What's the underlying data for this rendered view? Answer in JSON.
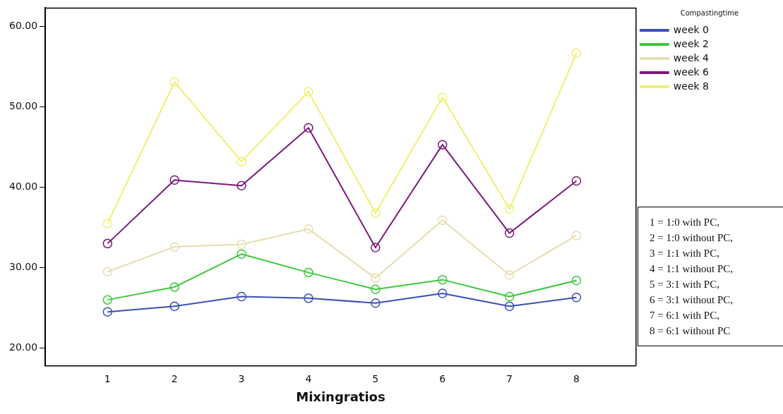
{
  "chart_data": {
    "type": "line",
    "xlabel": "Mixingratios",
    "legend_title": "Compastingtime",
    "legend": "top right",
    "marker": "circle",
    "grid": false,
    "x": [
      1,
      2,
      3,
      4,
      5,
      6,
      7,
      8
    ],
    "xlim": [
      0.07,
      8.89
    ],
    "xticks": [
      1,
      2,
      3,
      4,
      5,
      6,
      7,
      8
    ],
    "ylim": [
      17.8,
      62.3
    ],
    "yticks": [
      {
        "value": 20,
        "label": "20.00"
      },
      {
        "value": 30,
        "label": "30.00"
      },
      {
        "value": 40,
        "label": "40.00"
      },
      {
        "value": 50,
        "label": "50.00"
      },
      {
        "value": 60,
        "label": "60.00"
      }
    ],
    "series": [
      {
        "name": "week 0",
        "color": "#3c4fb5",
        "values": [
          24.5,
          25.2,
          26.4,
          26.2,
          25.6,
          26.8,
          25.2,
          26.3
        ]
      },
      {
        "name": "week 2",
        "color": "#3cc83c",
        "values": [
          26.0,
          27.6,
          31.7,
          29.4,
          27.3,
          28.5,
          26.4,
          28.4
        ]
      },
      {
        "name": "week 4",
        "color": "#e6deb0",
        "values": [
          29.5,
          32.6,
          32.9,
          34.8,
          28.7,
          35.9,
          29.1,
          34.0
        ]
      },
      {
        "name": "week 6",
        "color": "#7a1a7a",
        "values": [
          33.0,
          40.9,
          40.2,
          47.4,
          32.5,
          45.3,
          34.3,
          40.8
        ]
      },
      {
        "name": "week 8",
        "color": "#f0f070",
        "values": [
          35.5,
          53.1,
          43.2,
          51.9,
          36.8,
          51.2,
          37.3,
          56.7
        ]
      }
    ],
    "annotations": [
      "1 = 1:0 with PC,",
      "2 = 1:0 without PC,",
      "3 = 1:1 with PC,",
      "4 = 1:1 without PC,",
      "5 = 3:1 with PC,",
      "6 = 3:1 without PC,",
      "7 = 6:1 with PC,",
      "8 = 6:1 without PC"
    ]
  }
}
